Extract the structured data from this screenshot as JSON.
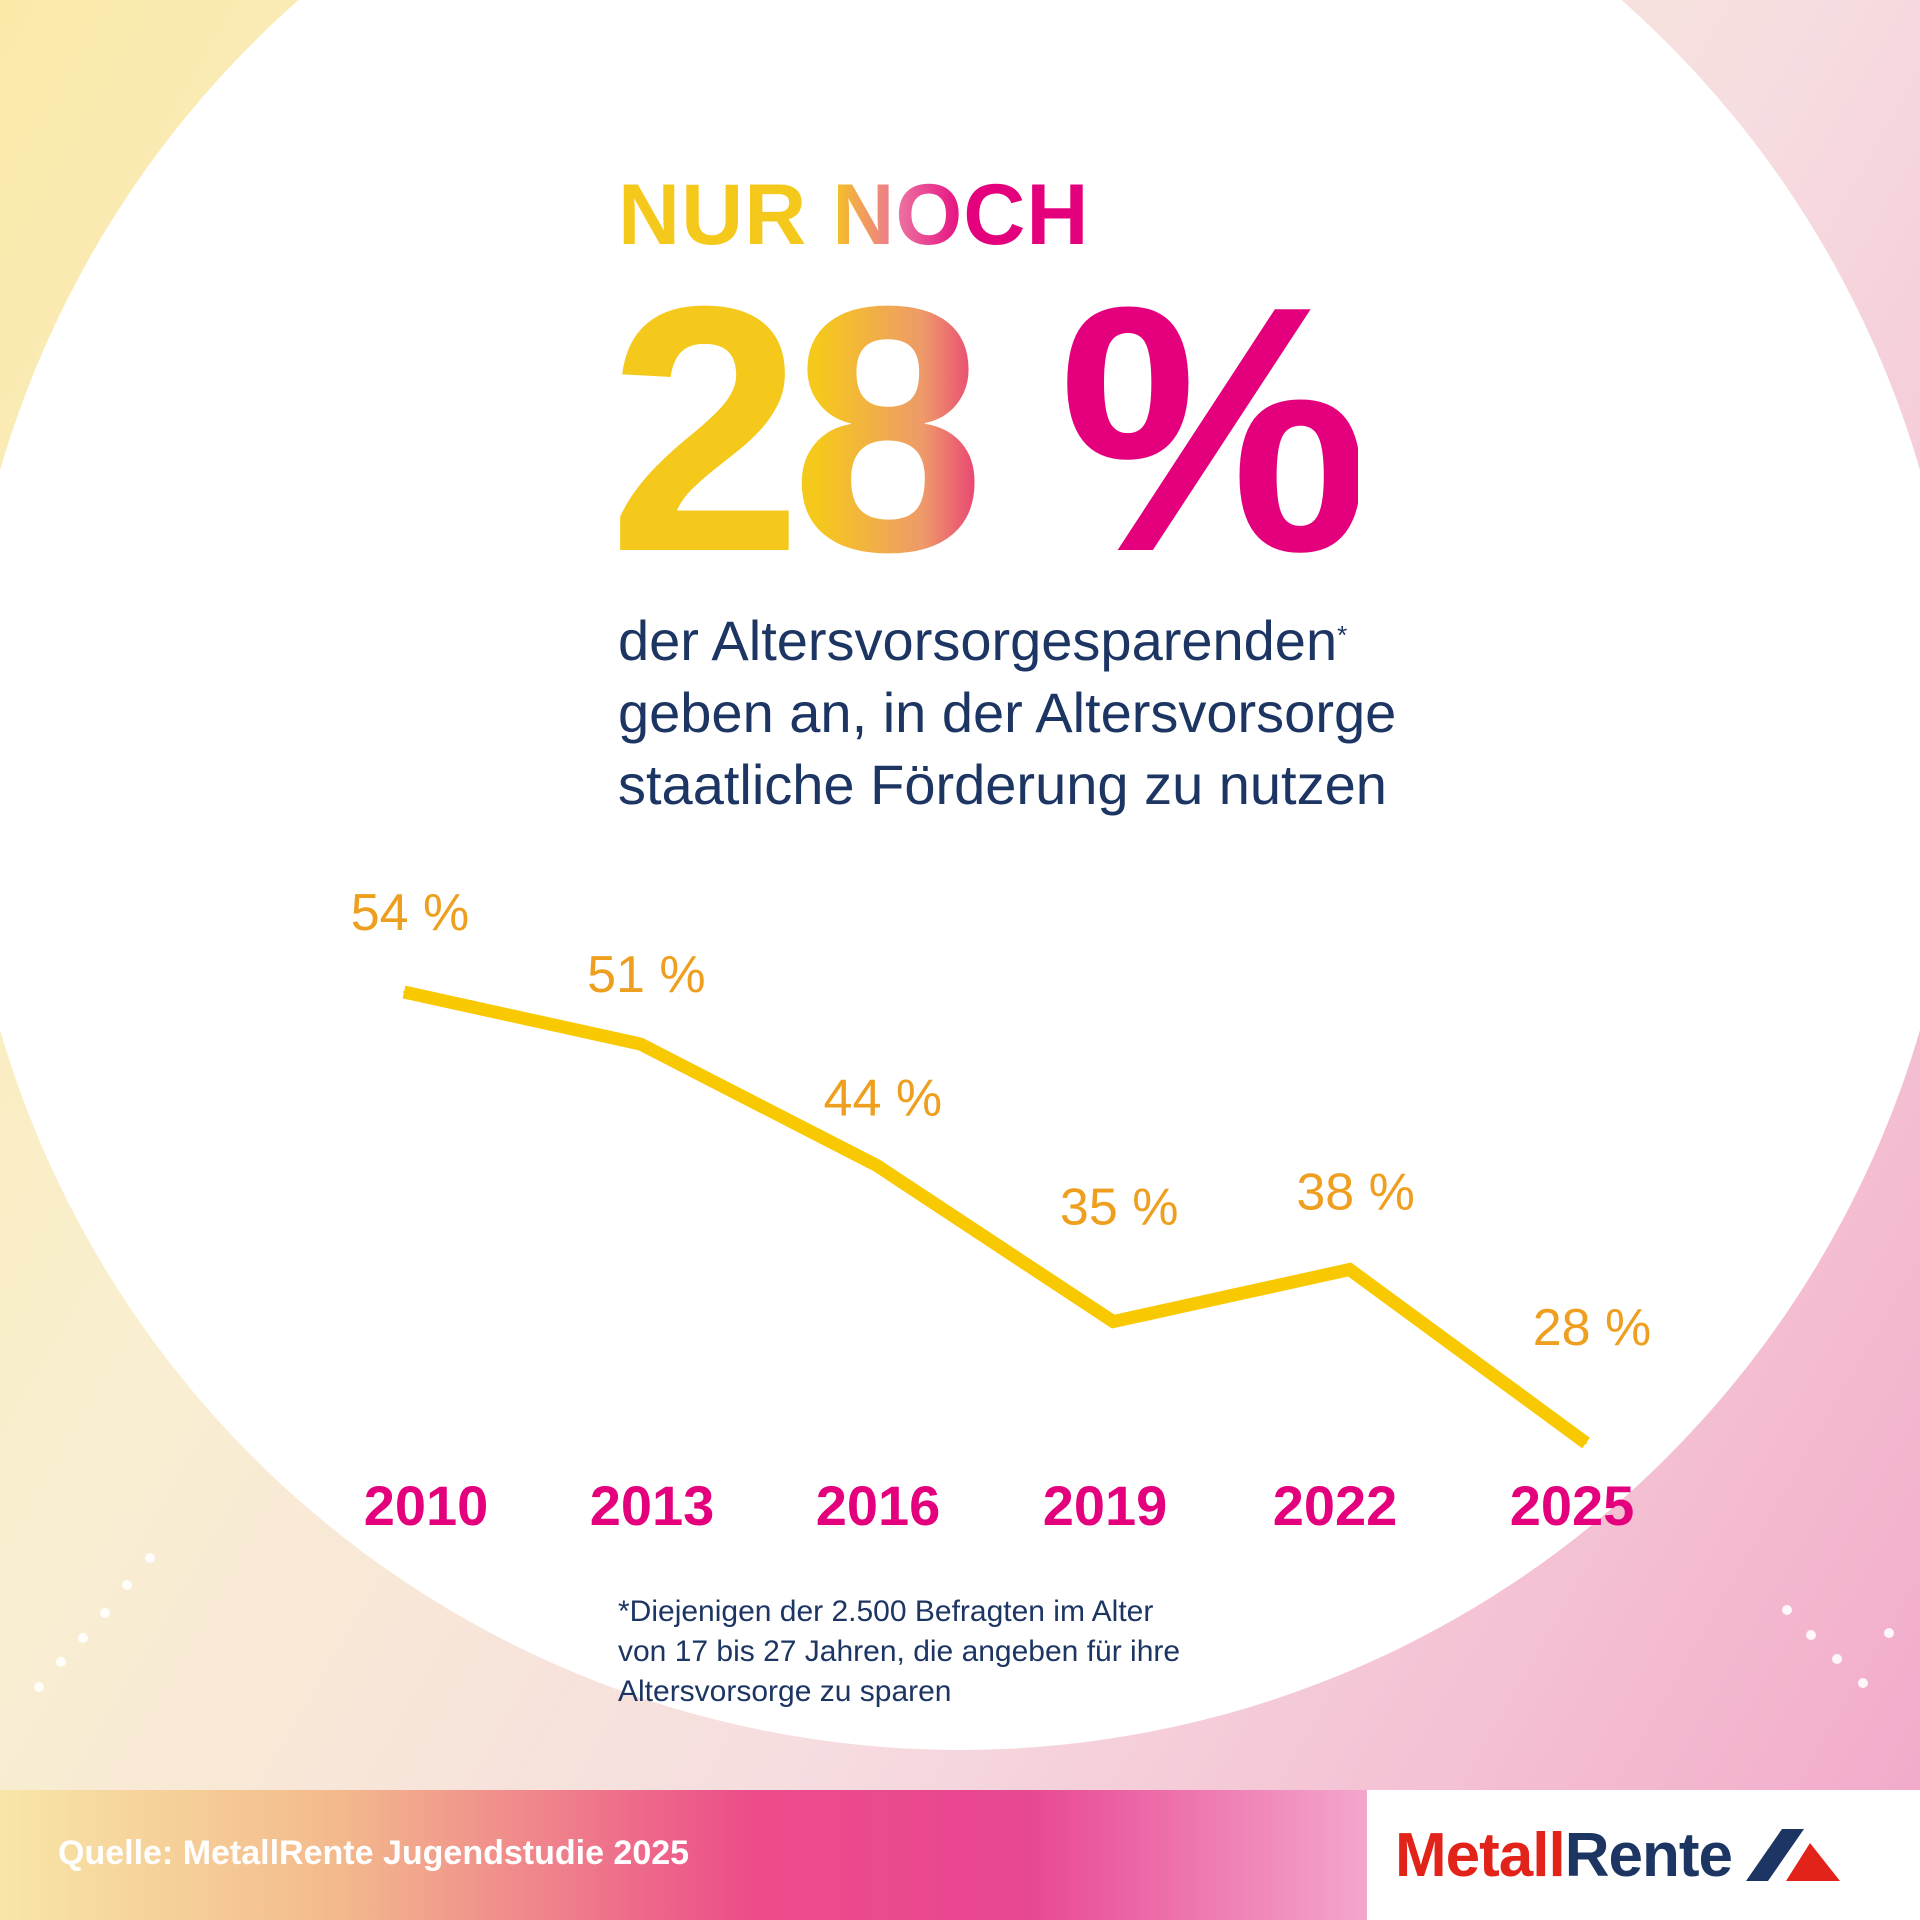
{
  "headline": {
    "small": "NUR NOCH",
    "big": "28 %"
  },
  "subtitle": {
    "line1": "der Altersvorsorgesparenden",
    "asterisk": "*",
    "line2": "geben an, in der Altersvorsorge",
    "line3": "staatliche Förderung zu nutzen"
  },
  "chart_data": {
    "type": "line",
    "categories": [
      "2010",
      "2013",
      "2016",
      "2019",
      "2022",
      "2025"
    ],
    "series": [
      {
        "values": [
          54,
          51,
          44,
          35,
          38,
          28
        ]
      }
    ],
    "data_labels": [
      "54 %",
      "51 %",
      "44 %",
      "35 %",
      "38 %",
      "28 %"
    ],
    "ylim": [
      28,
      54
    ],
    "grid": false,
    "line_color": "#f8c800",
    "label_color": "#ee9f1f",
    "category_color": "#e4007c"
  },
  "footnote": {
    "line1": "*Diejenigen der 2.500 Befragten im Alter",
    "line2": "von 17 bis 27 Jahren, die angeben für ihre",
    "line3": "Altersvorsorge zu sparen"
  },
  "footer": {
    "source": "Quelle: MetallRente Jugendstudie 2025",
    "logo_metall": "Metall",
    "logo_rente": "Rente"
  },
  "colors": {
    "navy": "#1c3562",
    "magenta": "#e4007c",
    "yellow": "#f5c81c",
    "logo_red": "#e2231a"
  }
}
